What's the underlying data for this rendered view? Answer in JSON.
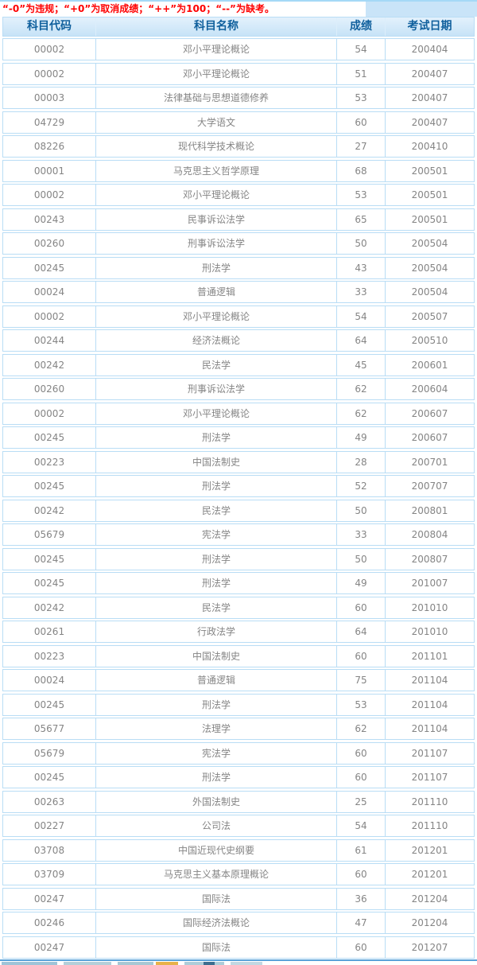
{
  "notice": "“-0”为违规；“+0”为取消成绩；“++”为100；“--”为缺考。",
  "table": {
    "columns": [
      "科目代码",
      "科目名称",
      "成绩",
      "考试日期"
    ],
    "rows": [
      {
        "code": "00002",
        "name": "邓小平理论概论",
        "score": "54",
        "date": "200404"
      },
      {
        "code": "00002",
        "name": "邓小平理论概论",
        "score": "51",
        "date": "200407"
      },
      {
        "code": "00003",
        "name": "法律基础与思想道德修养",
        "score": "53",
        "date": "200407"
      },
      {
        "code": "04729",
        "name": "大学语文",
        "score": "60",
        "date": "200407"
      },
      {
        "code": "08226",
        "name": "现代科学技术概论",
        "score": "27",
        "date": "200410"
      },
      {
        "code": "00001",
        "name": "马克思主义哲学原理",
        "score": "68",
        "date": "200501"
      },
      {
        "code": "00002",
        "name": "邓小平理论概论",
        "score": "53",
        "date": "200501"
      },
      {
        "code": "00243",
        "name": "民事诉讼法学",
        "score": "65",
        "date": "200501"
      },
      {
        "code": "00260",
        "name": "刑事诉讼法学",
        "score": "50",
        "date": "200504"
      },
      {
        "code": "00245",
        "name": "刑法学",
        "score": "43",
        "date": "200504"
      },
      {
        "code": "00024",
        "name": "普通逻辑",
        "score": "33",
        "date": "200504"
      },
      {
        "code": "00002",
        "name": "邓小平理论概论",
        "score": "54",
        "date": "200507"
      },
      {
        "code": "00244",
        "name": "经济法概论",
        "score": "64",
        "date": "200510"
      },
      {
        "code": "00242",
        "name": "民法学",
        "score": "45",
        "date": "200601"
      },
      {
        "code": "00260",
        "name": "刑事诉讼法学",
        "score": "62",
        "date": "200604"
      },
      {
        "code": "00002",
        "name": "邓小平理论概论",
        "score": "62",
        "date": "200607"
      },
      {
        "code": "00245",
        "name": "刑法学",
        "score": "49",
        "date": "200607"
      },
      {
        "code": "00223",
        "name": "中国法制史",
        "score": "28",
        "date": "200701"
      },
      {
        "code": "00245",
        "name": "刑法学",
        "score": "52",
        "date": "200707"
      },
      {
        "code": "00242",
        "name": "民法学",
        "score": "50",
        "date": "200801"
      },
      {
        "code": "05679",
        "name": "宪法学",
        "score": "33",
        "date": "200804"
      },
      {
        "code": "00245",
        "name": "刑法学",
        "score": "50",
        "date": "200807"
      },
      {
        "code": "00245",
        "name": "刑法学",
        "score": "49",
        "date": "201007"
      },
      {
        "code": "00242",
        "name": "民法学",
        "score": "60",
        "date": "201010"
      },
      {
        "code": "00261",
        "name": "行政法学",
        "score": "64",
        "date": "201010"
      },
      {
        "code": "00223",
        "name": "中国法制史",
        "score": "60",
        "date": "201101"
      },
      {
        "code": "00024",
        "name": "普通逻辑",
        "score": "75",
        "date": "201104"
      },
      {
        "code": "00245",
        "name": "刑法学",
        "score": "53",
        "date": "201104"
      },
      {
        "code": "05677",
        "name": "法理学",
        "score": "62",
        "date": "201104"
      },
      {
        "code": "05679",
        "name": "宪法学",
        "score": "60",
        "date": "201107"
      },
      {
        "code": "00245",
        "name": "刑法学",
        "score": "60",
        "date": "201107"
      },
      {
        "code": "00263",
        "name": "外国法制史",
        "score": "25",
        "date": "201110"
      },
      {
        "code": "00227",
        "name": "公司法",
        "score": "54",
        "date": "201110"
      },
      {
        "code": "03708",
        "name": "中国近现代史纲要",
        "score": "61",
        "date": "201201"
      },
      {
        "code": "03709",
        "name": "马克思主义基本原理概论",
        "score": "60",
        "date": "201201"
      },
      {
        "code": "00247",
        "name": "国际法",
        "score": "36",
        "date": "201204"
      },
      {
        "code": "00246",
        "name": "国际经济法概论",
        "score": "47",
        "date": "201204"
      },
      {
        "code": "00247",
        "name": "国际法",
        "score": "60",
        "date": "201207"
      }
    ]
  },
  "colors": {
    "notice_text": "#ff0000",
    "header_text": "#10609d",
    "header_background": "#d5e9f9",
    "table_border": "#b9ddf5",
    "body_text": "#858585",
    "top_strip": "#a5d9f6",
    "footer_line": "#5aa2d8"
  }
}
